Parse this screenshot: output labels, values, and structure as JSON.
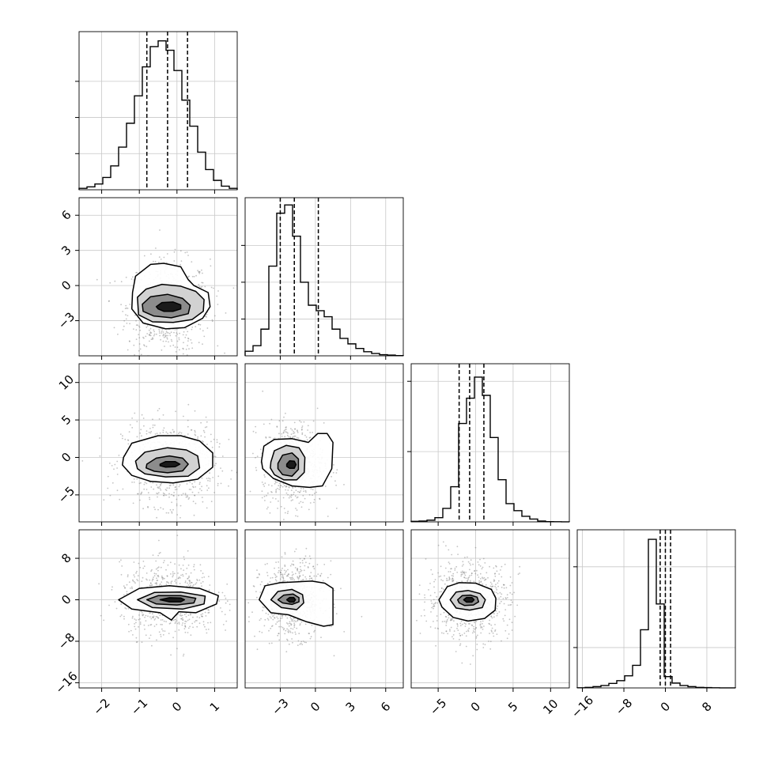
{
  "chart_data": {
    "type": "corner",
    "title": "",
    "n_params": 4,
    "params": [
      {
        "label": "",
        "range": [
          -2.6,
          1.6
        ],
        "ticks": [
          -2,
          -1,
          0,
          1
        ],
        "tick_labels": [
          "−2",
          "−1",
          "0",
          "1"
        ],
        "quantiles": [
          -0.8,
          -0.25,
          0.28
        ]
      },
      {
        "label": "",
        "range": [
          -6.0,
          7.5
        ],
        "ticks": [
          -3,
          0,
          3,
          6
        ],
        "tick_labels": [
          "−3",
          "0",
          "3",
          "6"
        ],
        "quantiles": [
          -3.0,
          -1.8,
          0.25
        ]
      },
      {
        "label": "",
        "range": [
          -8.6,
          12.5
        ],
        "ticks": [
          -5,
          0,
          5,
          10
        ],
        "tick_labels": [
          "−5",
          "0",
          "5",
          "10"
        ],
        "quantiles": [
          -2.2,
          -0.8,
          1.1
        ]
      },
      {
        "label": "",
        "range": [
          -17.0,
          13.5
        ],
        "ticks": [
          -16,
          -8,
          0,
          8
        ],
        "tick_labels": [
          "−16",
          "−8",
          "0",
          "8"
        ],
        "quantiles": [
          -1.0,
          0.0,
          1.0
        ]
      }
    ],
    "histograms": [
      {
        "param": 0,
        "hist_max": 21.0,
        "counts": [
          0.2,
          0.4,
          0.8,
          1.7,
          3.3,
          5.9,
          9.2,
          13.0,
          17.0,
          19.8,
          20.6,
          19.3,
          16.5,
          12.4,
          8.8,
          5.2,
          2.8,
          1.3,
          0.5,
          0.2
        ]
      },
      {
        "param": 1,
        "hist_max": 33.0,
        "counts": [
          1.0,
          2.2,
          5.8,
          19.5,
          31.0,
          32.8,
          26.0,
          16.0,
          11.0,
          9.8,
          8.5,
          5.8,
          3.8,
          2.6,
          1.6,
          0.9,
          0.5,
          0.25,
          0.15,
          0.05
        ]
      },
      {
        "param": 2,
        "hist_max": 54.0,
        "counts": [
          0.2,
          0.3,
          0.6,
          1.5,
          4.8,
          12.5,
          35.0,
          44.0,
          51.5,
          45.0,
          30.0,
          15.0,
          6.5,
          4.0,
          2.0,
          1.0,
          0.3,
          0.1,
          0.05,
          0.02
        ]
      },
      {
        "param": 3,
        "hist_max": 94.0,
        "counts": [
          0.1,
          0.3,
          0.8,
          1.5,
          2.8,
          4.5,
          7.5,
          14.0,
          36.0,
          92.0,
          52.0,
          7.0,
          3.0,
          1.5,
          0.8,
          0.3,
          0.2,
          0.1,
          0.05,
          0.02
        ]
      }
    ],
    "hist_ticks": [
      {
        "param": 0,
        "values": [
          5,
          10,
          15
        ]
      },
      {
        "param": 1,
        "values": [
          8,
          16,
          24
        ]
      },
      {
        "param": 2,
        "values": [
          25,
          50
        ]
      },
      {
        "param": 3,
        "values": [
          25,
          75
        ]
      }
    ],
    "pairs": [
      {
        "row": 1,
        "col": 0,
        "center": [
          -0.22,
          -1.8
        ],
        "spread": [
          0.52,
          1.9
        ],
        "contours": [
          [
            [
              -1.18,
              -0.6
            ],
            [
              -1.1,
              0.8
            ],
            [
              -0.7,
              1.8
            ],
            [
              -0.35,
              1.9
            ],
            [
              0.1,
              1.6
            ],
            [
              0.3,
              0.5
            ],
            [
              0.45,
              0.0
            ],
            [
              0.83,
              -0.6
            ],
            [
              0.88,
              -1.8
            ],
            [
              0.68,
              -2.8
            ],
            [
              0.2,
              -3.6
            ],
            [
              -0.3,
              -3.7
            ],
            [
              -0.9,
              -3.2
            ],
            [
              -1.2,
              -2.0
            ]
          ],
          [
            [
              -1.05,
              -1.0
            ],
            [
              -0.82,
              -0.3
            ],
            [
              -0.4,
              0.1
            ],
            [
              0.1,
              -0.05
            ],
            [
              0.5,
              -0.5
            ],
            [
              0.72,
              -1.2
            ],
            [
              0.7,
              -2.2
            ],
            [
              0.4,
              -2.9
            ],
            [
              -0.1,
              -3.15
            ],
            [
              -0.65,
              -3.1
            ],
            [
              -1.02,
              -2.5
            ]
          ],
          [
            [
              -0.92,
              -1.6
            ],
            [
              -0.7,
              -0.95
            ],
            [
              -0.25,
              -0.75
            ],
            [
              0.15,
              -1.1
            ],
            [
              0.35,
              -1.7
            ],
            [
              0.3,
              -2.4
            ],
            [
              -0.15,
              -2.75
            ],
            [
              -0.62,
              -2.6
            ],
            [
              -0.9,
              -2.2
            ]
          ],
          [
            [
              -0.55,
              -1.8
            ],
            [
              -0.4,
              -1.45
            ],
            [
              -0.1,
              -1.4
            ],
            [
              0.1,
              -1.65
            ],
            [
              0.1,
              -2.0
            ],
            [
              -0.1,
              -2.2
            ],
            [
              -0.35,
              -2.2
            ],
            [
              -0.5,
              -2.0
            ]
          ]
        ]
      },
      {
        "row": 2,
        "col": 0,
        "center": [
          -0.22,
          -0.9
        ],
        "spread": [
          0.58,
          2.6
        ],
        "contours": [
          [
            [
              -1.42,
              0.0
            ],
            [
              -1.2,
              1.9
            ],
            [
              -0.5,
              2.9
            ],
            [
              0.1,
              2.9
            ],
            [
              0.6,
              2.2
            ],
            [
              0.95,
              0.6
            ],
            [
              0.95,
              -1.3
            ],
            [
              0.55,
              -2.9
            ],
            [
              -0.1,
              -3.4
            ],
            [
              -0.7,
              -3.2
            ],
            [
              -1.2,
              -2.4
            ],
            [
              -1.45,
              -1.0
            ]
          ],
          [
            [
              -1.1,
              -0.5
            ],
            [
              -0.85,
              0.7
            ],
            [
              -0.25,
              1.3
            ],
            [
              0.25,
              1.0
            ],
            [
              0.55,
              0.2
            ],
            [
              0.6,
              -1.4
            ],
            [
              0.3,
              -2.5
            ],
            [
              -0.3,
              -2.6
            ],
            [
              -0.85,
              -2.2
            ],
            [
              -1.05,
              -1.5
            ]
          ],
          [
            [
              -0.8,
              -0.9
            ],
            [
              -0.55,
              -0.1
            ],
            [
              -0.2,
              0.2
            ],
            [
              0.15,
              -0.1
            ],
            [
              0.3,
              -0.9
            ],
            [
              0.15,
              -1.8
            ],
            [
              -0.25,
              -2.05
            ],
            [
              -0.6,
              -1.85
            ],
            [
              -0.82,
              -1.4
            ]
          ],
          [
            [
              -0.45,
              -0.9
            ],
            [
              -0.3,
              -0.55
            ],
            [
              -0.05,
              -0.55
            ],
            [
              0.08,
              -0.9
            ],
            [
              -0.05,
              -1.25
            ],
            [
              -0.3,
              -1.3
            ],
            [
              -0.45,
              -1.1
            ]
          ]
        ]
      },
      {
        "row": 2,
        "col": 1,
        "center": [
          -1.9,
          -0.9
        ],
        "spread": [
          1.25,
          2.6
        ],
        "contours": [
          [
            [
              -4.6,
              -0.5
            ],
            [
              -4.4,
              1.5
            ],
            [
              -3.5,
              2.4
            ],
            [
              -2.0,
              2.5
            ],
            [
              -0.6,
              2.0
            ],
            [
              0.2,
              3.2
            ],
            [
              1.0,
              3.2
            ],
            [
              1.5,
              2.0
            ],
            [
              1.4,
              -1.5
            ],
            [
              0.6,
              -3.8
            ],
            [
              -0.5,
              -4.0
            ],
            [
              -2.0,
              -3.8
            ],
            [
              -3.6,
              -2.8
            ],
            [
              -4.5,
              -1.5
            ]
          ],
          [
            [
              -3.8,
              -0.6
            ],
            [
              -3.5,
              0.9
            ],
            [
              -2.5,
              1.6
            ],
            [
              -1.4,
              1.3
            ],
            [
              -0.9,
              0.0
            ],
            [
              -0.95,
              -2.0
            ],
            [
              -1.6,
              -3.0
            ],
            [
              -2.7,
              -3.0
            ],
            [
              -3.5,
              -2.3
            ],
            [
              -3.85,
              -1.4
            ]
          ],
          [
            [
              -3.2,
              -0.8
            ],
            [
              -2.8,
              0.3
            ],
            [
              -2.0,
              0.6
            ],
            [
              -1.45,
              -0.2
            ],
            [
              -1.45,
              -1.6
            ],
            [
              -2.0,
              -2.5
            ],
            [
              -2.8,
              -2.3
            ],
            [
              -3.2,
              -1.5
            ]
          ],
          [
            [
              -2.45,
              -0.9
            ],
            [
              -2.2,
              -0.45
            ],
            [
              -1.8,
              -0.5
            ],
            [
              -1.65,
              -0.95
            ],
            [
              -1.8,
              -1.45
            ],
            [
              -2.2,
              -1.45
            ],
            [
              -2.45,
              -1.2
            ]
          ]
        ]
      },
      {
        "row": 3,
        "col": 0,
        "center": [
          -0.22,
          0.0
        ],
        "spread": [
          0.6,
          3.3
        ],
        "contours": [
          [
            [
              -1.55,
              0.0
            ],
            [
              -1.0,
              2.2
            ],
            [
              -0.2,
              2.7
            ],
            [
              0.6,
              2.2
            ],
            [
              1.1,
              0.8
            ],
            [
              1.05,
              -0.8
            ],
            [
              0.5,
              -2.5
            ],
            [
              0.05,
              -2.3
            ],
            [
              -0.15,
              -3.9
            ],
            [
              -0.45,
              -2.5
            ],
            [
              -1.2,
              -1.8
            ]
          ],
          [
            [
              -1.05,
              0.0
            ],
            [
              -0.6,
              1.4
            ],
            [
              0.1,
              1.5
            ],
            [
              0.75,
              0.7
            ],
            [
              0.72,
              -0.8
            ],
            [
              0.15,
              -1.8
            ],
            [
              -0.65,
              -1.5
            ]
          ],
          [
            [
              -0.8,
              0.0
            ],
            [
              -0.5,
              0.8
            ],
            [
              0.1,
              0.8
            ],
            [
              0.5,
              0.3
            ],
            [
              0.45,
              -0.6
            ],
            [
              0.0,
              -1.0
            ],
            [
              -0.55,
              -0.8
            ]
          ],
          [
            [
              -0.45,
              0.0
            ],
            [
              -0.2,
              0.4
            ],
            [
              0.1,
              0.35
            ],
            [
              0.2,
              0.0
            ],
            [
              0.1,
              -0.4
            ],
            [
              -0.2,
              -0.4
            ]
          ]
        ]
      },
      {
        "row": 3,
        "col": 1,
        "center": [
          -1.9,
          0.0
        ],
        "spread": [
          1.3,
          3.4
        ],
        "contours": [
          [
            [
              -4.8,
              0.0
            ],
            [
              -4.3,
              2.7
            ],
            [
              -3.0,
              3.3
            ],
            [
              -1.3,
              3.5
            ],
            [
              -0.3,
              3.6
            ],
            [
              0.8,
              3.2
            ],
            [
              1.5,
              2.2
            ],
            [
              1.5,
              -4.8
            ],
            [
              0.7,
              -5.1
            ],
            [
              -0.8,
              -4.2
            ],
            [
              -2.3,
              -2.9
            ],
            [
              -3.8,
              -2.5
            ]
          ],
          [
            [
              -3.8,
              0.0
            ],
            [
              -3.2,
              1.6
            ],
            [
              -2.0,
              2.0
            ],
            [
              -1.1,
              1.0
            ],
            [
              -1.0,
              -0.6
            ],
            [
              -1.6,
              -1.9
            ],
            [
              -2.9,
              -1.5
            ]
          ],
          [
            [
              -3.2,
              0.0
            ],
            [
              -2.7,
              0.9
            ],
            [
              -1.9,
              1.1
            ],
            [
              -1.4,
              0.4
            ],
            [
              -1.4,
              -0.4
            ],
            [
              -2.0,
              -0.9
            ],
            [
              -2.8,
              -0.6
            ]
          ],
          [
            [
              -2.45,
              0.0
            ],
            [
              -2.2,
              0.45
            ],
            [
              -1.85,
              0.45
            ],
            [
              -1.7,
              0.0
            ],
            [
              -1.85,
              -0.45
            ],
            [
              -2.2,
              -0.45
            ]
          ]
        ]
      },
      {
        "row": 3,
        "col": 2,
        "center": [
          -0.9,
          0.0
        ],
        "spread": [
          2.6,
          3.5
        ],
        "contours": [
          [
            [
              -4.9,
              0.0
            ],
            [
              -3.8,
              2.5
            ],
            [
              -2.2,
              3.3
            ],
            [
              0.0,
              3.2
            ],
            [
              2.1,
              2.0
            ],
            [
              2.7,
              0.3
            ],
            [
              2.6,
              -2.0
            ],
            [
              1.2,
              -3.6
            ],
            [
              -1.0,
              -4.1
            ],
            [
              -3.0,
              -3.4
            ],
            [
              -4.5,
              -1.4
            ]
          ],
          [
            [
              -3.4,
              0.0
            ],
            [
              -2.6,
              1.5
            ],
            [
              -1.0,
              1.8
            ],
            [
              0.6,
              1.2
            ],
            [
              1.3,
              0.0
            ],
            [
              0.9,
              -1.5
            ],
            [
              -0.8,
              -2.0
            ],
            [
              -2.6,
              -1.6
            ]
          ],
          [
            [
              -2.4,
              0.0
            ],
            [
              -1.8,
              0.8
            ],
            [
              -0.7,
              0.9
            ],
            [
              0.2,
              0.5
            ],
            [
              0.4,
              -0.4
            ],
            [
              -0.3,
              -1.0
            ],
            [
              -1.5,
              -1.1
            ],
            [
              -2.2,
              -0.6
            ]
          ],
          [
            [
              -1.6,
              0.0
            ],
            [
              -1.2,
              0.45
            ],
            [
              -0.5,
              0.45
            ],
            [
              -0.2,
              0.0
            ],
            [
              -0.5,
              -0.45
            ],
            [
              -1.2,
              -0.45
            ]
          ]
        ]
      }
    ]
  }
}
